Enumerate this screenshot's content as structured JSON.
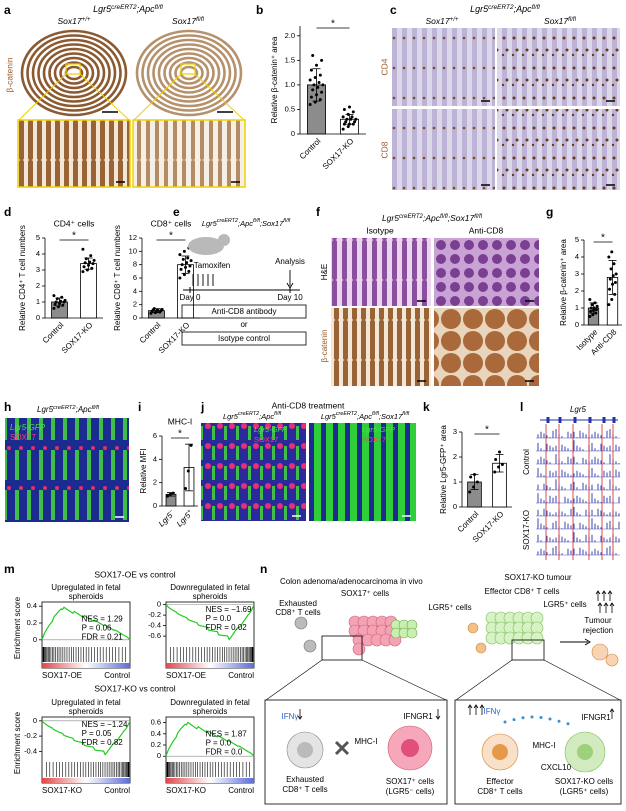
{
  "a": {
    "label": "a",
    "title": [
      "Lgr5",
      "creERT2",
      ";Apc",
      "fl/fl"
    ],
    "cols": [
      [
        "Sox17",
        "+/+"
      ],
      [
        "Sox17",
        "fl/fl"
      ]
    ],
    "stain": "β-catenin"
  },
  "b": {
    "label": "b",
    "ylabel": "Relative β-catenin⁺ area",
    "ylim": [
      0,
      2.2
    ],
    "yticks": [
      0,
      0.5,
      {
        "value": 1,
        "label": "1.0"
      },
      1.5,
      {
        "value": 2,
        "label": "2.0"
      }
    ],
    "categories": [
      "Control",
      "SOX17-KO"
    ],
    "values": [
      1.0,
      0.3
    ],
    "errors": [
      0.33,
      0.1
    ],
    "points": [
      [
        0.6,
        0.65,
        0.7,
        0.75,
        0.8,
        0.85,
        0.9,
        0.95,
        1.0,
        1.0,
        1.05,
        1.1,
        1.15,
        1.2,
        1.3,
        1.4,
        1.5,
        1.6
      ],
      [
        0.1,
        0.15,
        0.2,
        0.2,
        0.2,
        0.25,
        0.25,
        0.3,
        0.3,
        0.3,
        0.35,
        0.35,
        0.4,
        0.45,
        0.5,
        0.55
      ]
    ],
    "colors": [
      "#8c8c8c",
      "#ffffff"
    ],
    "sig": "*"
  },
  "c": {
    "label": "c",
    "title": [
      "Lgr5",
      "creERT2",
      ";Apc",
      "fl/fl"
    ],
    "cols": [
      [
        "Sox17",
        "+/+"
      ],
      [
        "Sox17",
        "fl/fl"
      ]
    ],
    "rows": [
      "CD4",
      "CD8"
    ]
  },
  "d": {
    "label": "d",
    "charts": [
      {
        "title": "CD4⁺ cells",
        "ylabel": "Relative CD4⁺ T cell numbers",
        "ylim": [
          0,
          5
        ],
        "yticks": [
          0,
          1,
          2,
          3,
          4,
          5
        ],
        "categories": [
          "Control",
          "SOX17-KO"
        ],
        "values": [
          1.0,
          3.4
        ],
        "errors": [
          0.25,
          0.35
        ],
        "points": [
          [
            0.6,
            0.7,
            0.8,
            0.85,
            0.9,
            1.0,
            1.0,
            1.05,
            1.1,
            1.2,
            1.3,
            1.4
          ],
          [
            2.9,
            3.0,
            3.1,
            3.2,
            3.3,
            3.4,
            3.45,
            3.5,
            3.6,
            3.7,
            3.9,
            4.3
          ]
        ],
        "colors": [
          "#8c8c8c",
          "#ffffff"
        ],
        "sig": "*"
      },
      {
        "title": "CD8⁺ cells",
        "ylabel": "Relative CD8⁺ T cell numbers",
        "ylim": [
          0,
          12
        ],
        "yticks": [
          0,
          2,
          4,
          6,
          8,
          10,
          12
        ],
        "categories": [
          "Control",
          "SOX17-KO"
        ],
        "values": [
          1.1,
          8.0
        ],
        "errors": [
          0.3,
          1.3
        ],
        "points": [
          [
            0.7,
            0.8,
            0.9,
            1.0,
            1.0,
            1.1,
            1.2,
            1.2,
            1.3,
            1.4
          ],
          [
            6,
            6.5,
            7,
            7.3,
            7.6,
            7.8,
            8,
            8.3,
            8.6,
            8.8,
            9,
            9.5,
            10,
            10.5
          ]
        ],
        "colors": [
          "#8c8c8c",
          "#ffffff"
        ],
        "sig": "*"
      }
    ]
  },
  "e": {
    "label": "e",
    "title": [
      "Lgr5",
      "creERT2",
      ";Apc",
      "fl/fl",
      ";Sox17",
      "fl/fl"
    ],
    "treatment": "Tamoxifen",
    "analysis": "Analysis",
    "start": "Day 0",
    "end": "Day 10",
    "option1": "Anti-CD8 antibody",
    "or": "or",
    "option2": "Isotype control"
  },
  "f": {
    "label": "f",
    "title": [
      "Lgr5",
      "creERT2",
      ";Apc",
      "fl/fl",
      ";Sox17",
      "fl/fl"
    ],
    "cols": [
      "Isotype",
      "Anti-CD8"
    ],
    "rows": [
      "H&E",
      "β-catenin"
    ]
  },
  "g": {
    "label": "g",
    "ylabel": "Relative β-catenin⁺ area",
    "ylim": [
      0,
      5
    ],
    "yticks": [
      0,
      1,
      2,
      3,
      4,
      5
    ],
    "categories": [
      "Isotype",
      "Anti-CD8"
    ],
    "values": [
      1.0,
      2.8
    ],
    "errors": [
      0.3,
      1.0
    ],
    "points": [
      [
        0.5,
        0.6,
        0.7,
        0.8,
        0.85,
        0.9,
        1.0,
        1.0,
        1.1,
        1.2,
        1.3,
        1.5
      ],
      [
        1.2,
        1.5,
        1.8,
        2.1,
        2.4,
        2.5,
        2.7,
        2.9,
        3.0,
        3.3,
        3.6,
        4.0,
        4.3
      ]
    ],
    "colors": [
      "#8c8c8c",
      "#ffffff"
    ],
    "sig": "*"
  },
  "h": {
    "label": "h",
    "title": [
      "Lgr5",
      "creERT2",
      ";Apc",
      "fl/fl"
    ],
    "channels": [
      "Lgr5-GFP",
      "SOX17"
    ]
  },
  "i": {
    "label": "i",
    "title": "MHC-I",
    "ylabel": "Relative MFI",
    "ylim": [
      0,
      6
    ],
    "yticks": [
      0,
      2,
      4,
      6
    ],
    "categories": [
      [
        "Lgr5",
        "−"
      ],
      [
        "Lgr5",
        "+"
      ]
    ],
    "values": [
      1.0,
      3.3
    ],
    "errors": [
      0.15,
      2.0
    ],
    "points": [
      [
        0.85,
        1.0,
        1.1
      ],
      [
        1.5,
        3.0,
        5.2
      ]
    ],
    "colors": [
      "#8c8c8c",
      "#ffffff"
    ],
    "sig": "*"
  },
  "j": {
    "label": "j",
    "header": "Anti-CD8 treatment",
    "titles": [
      [
        "Lgr5",
        "creERT2",
        ";Apc",
        "fl/fl"
      ],
      [
        "Lgr5",
        "creERT2",
        ";Apc",
        "fl/fl",
        ";Sox17",
        "fl/fl"
      ]
    ],
    "channels": [
      "Lgr5-GFP",
      "SOX17"
    ]
  },
  "k": {
    "label": "k",
    "ylabel": "Relative Lgr5-GFP⁺ area",
    "ylim": [
      0,
      3
    ],
    "yticks": [
      0,
      1,
      2,
      3
    ],
    "categories": [
      "Control",
      "SOX17-KO"
    ],
    "values": [
      1.0,
      1.75
    ],
    "errors": [
      0.3,
      0.35
    ],
    "points": [
      [
        0.6,
        0.8,
        1.0,
        1.2,
        1.3
      ],
      [
        1.4,
        1.6,
        1.7,
        1.9,
        2.2
      ]
    ],
    "colors": [
      "#8c8c8c",
      "#ffffff"
    ],
    "sig": "*"
  },
  "l": {
    "label": "l",
    "gene": "Lgr5",
    "groups": [
      "Control",
      "SOX17-KO"
    ]
  },
  "m": {
    "label": "m",
    "ylabel": "Enrichment score",
    "groups": [
      {
        "title": "SOX17-OE vs control",
        "left": "SOX17-OE",
        "right": "Control",
        "plots": [
          {
            "title": [
              "Upregulated in fetal",
              "spheroids"
            ],
            "stats": [
              "NES = 1.29",
              "P = 0.06",
              "FDR = 0.21"
            ],
            "ylim": [
              -0.05,
              0.45
            ],
            "yticks": [
              0,
              0.2,
              0.4
            ]
          },
          {
            "title": [
              "Downregulated in fetal",
              "spheroids"
            ],
            "stats": [
              "NES = −1.69",
              "P = 0.0",
              "FDR = 0.02"
            ],
            "ylim": [
              -0.75,
              0.05
            ],
            "yticks": [
              -0.6,
              -0.4,
              -0.2,
              0
            ]
          }
        ]
      },
      {
        "title": "SOX17-KO vs control",
        "left": "SOX17-KO",
        "right": "Control",
        "plots": [
          {
            "title": [
              "Upregulated in fetal",
              "spheroids"
            ],
            "stats": [
              "NES = −1.24",
              "P = 0.05",
              "FDR = 0.82"
            ],
            "ylim": [
              -0.5,
              0.05
            ],
            "yticks": [
              -0.4,
              -0.2,
              0
            ]
          },
          {
            "title": [
              "Downregulated in fetal",
              "spheroids"
            ],
            "stats": [
              "NES = 1.87",
              "P = 0.0",
              "FDR = 0.0"
            ],
            "ylim": [
              -0.05,
              0.7
            ],
            "yticks": [
              0,
              0.2,
              0.4,
              0.6
            ]
          }
        ]
      }
    ]
  },
  "n": {
    "label": "n",
    "texts": [
      "Colon adenoma/adenocarcinoma in vivo",
      "SOX17⁺ cells",
      "LGR5⁺ cells",
      "Exhausted",
      "CD8⁺ T cells",
      "SOX17-KO tumour",
      "Effector CD8⁺ T cells",
      "LGR5⁺ cells",
      "Tumour",
      "rejection",
      "IFNγ",
      "MHC-I",
      "IFNGR1",
      "Exhausted",
      "CD8⁺ T cells",
      "SOX17⁺ cells",
      "(LGR5⁻ cells)",
      "IFNγ",
      "IFNGR1",
      "MHC-I",
      "CXCL10",
      "Effector",
      "CD8⁺ T cells",
      "SOX17-KO cells",
      "(LGR5⁺ cells)"
    ]
  }
}
